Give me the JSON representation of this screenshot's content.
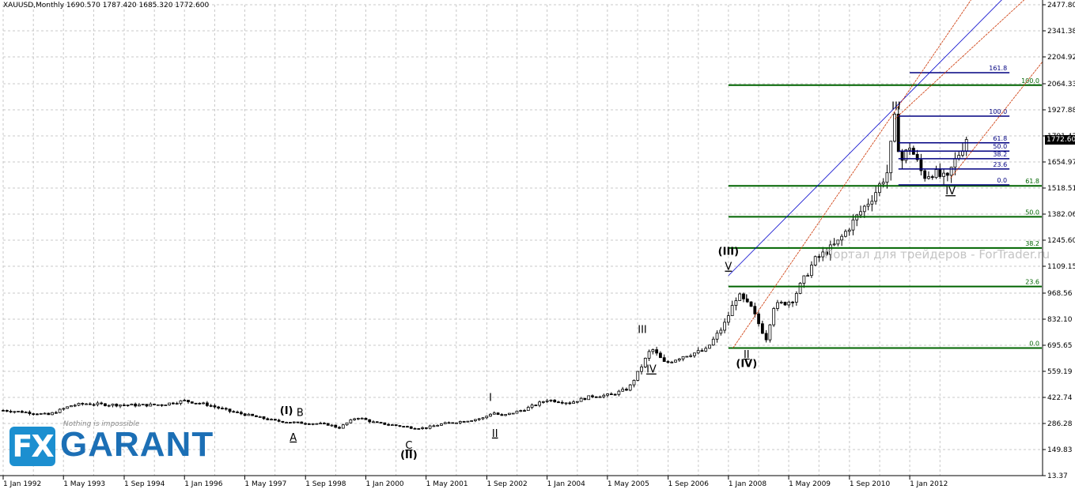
{
  "header": {
    "title": "XAUUSD,Monthly  1690.570 1787.420 1685.320 1772.600"
  },
  "watermark": "Портал для трейдеров - ForTrader.ru",
  "logo": {
    "fx": "FX",
    "name": "GARANT",
    "slogan": "Nothing is impossible"
  },
  "current_price": "1772.60",
  "chart_data": {
    "type": "candlestick",
    "symbol": "XAUUSD",
    "timeframe": "Monthly",
    "ohlc_last": {
      "open": 1690.57,
      "high": 1787.42,
      "low": 1685.32,
      "close": 1772.6
    },
    "y_ticks": [
      "2477.80",
      "2341.38",
      "2204.92",
      "2064.33",
      "1927.88",
      "1791.42",
      "1654.97",
      "1518.51",
      "1382.06",
      "1245.60",
      "1109.15",
      "968.56",
      "832.10",
      "695.65",
      "559.19",
      "422.74",
      "286.28",
      "149.83",
      "13.37"
    ],
    "y_tick_values": [
      2477.8,
      2341.38,
      2204.92,
      2064.33,
      1927.88,
      1791.42,
      1654.97,
      1518.51,
      1382.06,
      1245.6,
      1109.15,
      968.56,
      832.1,
      695.65,
      559.19,
      422.74,
      286.28,
      149.83,
      13.37
    ],
    "ylim": [
      13.37,
      2477.8
    ],
    "x_ticks": [
      "1 Jan 1992",
      "1 May 1993",
      "1 Sep 1994",
      "1 Jan 1996",
      "1 May 1997",
      "1 Sep 1998",
      "1 Jan 2000",
      "1 May 2001",
      "1 Sep 2002",
      "1 Jan 2004",
      "1 May 2005",
      "1 Sep 2006",
      "1 Jan 2008",
      "1 May 2009",
      "1 Sep 2010",
      "1 Jan 2012"
    ],
    "x_tick_years": [
      1992.0,
      1993.33,
      1994.67,
      1996.0,
      1997.33,
      1998.67,
      2000.0,
      2001.33,
      2002.67,
      2004.0,
      2005.33,
      2006.67,
      2008.0,
      2009.33,
      2010.67,
      2012.0
    ],
    "xlim": [
      1992.0,
      2014.93
    ],
    "price_path": [
      [
        1992.0,
        355
      ],
      [
        1992.5,
        345
      ],
      [
        1993.0,
        332
      ],
      [
        1993.5,
        380
      ],
      [
        1993.8,
        390
      ],
      [
        1994.3,
        385
      ],
      [
        1995.0,
        382
      ],
      [
        1995.5,
        385
      ],
      [
        1996.0,
        405
      ],
      [
        1996.5,
        385
      ],
      [
        1997.0,
        350
      ],
      [
        1997.5,
        325
      ],
      [
        1998.0,
        300
      ],
      [
        1998.5,
        290
      ],
      [
        1998.9,
        286
      ],
      [
        1999.2,
        280
      ],
      [
        1999.4,
        262
      ],
      [
        1999.8,
        320
      ],
      [
        2000.2,
        290
      ],
      [
        2000.6,
        278
      ],
      [
        2001.0,
        265
      ],
      [
        2001.3,
        262
      ],
      [
        2001.7,
        285
      ],
      [
        2002.2,
        300
      ],
      [
        2002.6,
        315
      ],
      [
        2002.8,
        345
      ],
      [
        2003.0,
        325
      ],
      [
        2003.5,
        360
      ],
      [
        2004.0,
        410
      ],
      [
        2004.5,
        395
      ],
      [
        2005.0,
        430
      ],
      [
        2005.4,
        435
      ],
      [
        2005.8,
        470
      ],
      [
        2006.0,
        550
      ],
      [
        2006.3,
        680
      ],
      [
        2006.6,
        600
      ],
      [
        2007.0,
        640
      ],
      [
        2007.5,
        670
      ],
      [
        2007.9,
        800
      ],
      [
        2008.2,
        960
      ],
      [
        2008.5,
        890
      ],
      [
        2008.83,
        730
      ],
      [
        2009.0,
        900
      ],
      [
        2009.4,
        930
      ],
      [
        2009.9,
        1140
      ],
      [
        2010.4,
        1230
      ],
      [
        2010.9,
        1390
      ],
      [
        2011.2,
        1480
      ],
      [
        2011.5,
        1600
      ],
      [
        2011.67,
        1880
      ],
      [
        2011.8,
        1650
      ],
      [
        2012.0,
        1740
      ],
      [
        2012.3,
        1580
      ],
      [
        2012.5,
        1600
      ],
      [
        2012.83,
        1560
      ],
      [
        2012.95,
        1640
      ],
      [
        2013.25,
        1772.6
      ]
    ],
    "series": [
      {
        "name": "Fibonacci levels (long-term)",
        "color": "#006400",
        "levels": [
          {
            "label": "0.0",
            "value": 681
          },
          {
            "label": "23.6",
            "value": 1003
          },
          {
            "label": "38.2",
            "value": 1205
          },
          {
            "label": "50.0",
            "value": 1368
          },
          {
            "label": "61.8",
            "value": 1530
          },
          {
            "label": "100.0",
            "value": 2057
          }
        ]
      },
      {
        "name": "Fibonacci levels (short-term)",
        "color": "#000080",
        "levels": [
          {
            "label": "0.0",
            "value": 1535
          },
          {
            "label": "23.6",
            "value": 1618
          },
          {
            "label": "38.2",
            "value": 1672
          },
          {
            "label": "50.0",
            "value": 1712
          },
          {
            "label": "61.8",
            "value": 1755
          },
          {
            "label": "100.0",
            "value": 1895
          },
          {
            "label": "161.8",
            "value": 2122
          }
        ]
      }
    ],
    "trendlines": [
      {
        "color": "#0000cc",
        "from": [
          2008.0,
          1060
        ],
        "to": [
          2014.1,
          2520
        ]
      },
      {
        "color": "#cc3300",
        "from": [
          2008.1,
          681
        ],
        "to": [
          2013.4,
          2520
        ]
      },
      {
        "color": "#cc3300",
        "from": [
          2011.67,
          1880
        ],
        "to": [
          2014.6,
          2520
        ]
      },
      {
        "color": "#cc3300",
        "from": [
          2012.9,
          1570
        ],
        "to": [
          2014.93,
          2180
        ]
      }
    ],
    "annotations": [
      {
        "text": "(I)",
        "x": 1998.25,
        "y": 335,
        "bold": true,
        "underline": false
      },
      {
        "text": "B",
        "x": 1998.55,
        "y": 325,
        "bold": false,
        "underline": false
      },
      {
        "text": "A",
        "x": 1998.4,
        "y": 196,
        "bold": false,
        "underline": true
      },
      {
        "text": "C",
        "x": 2000.95,
        "y": 154,
        "bold": false,
        "underline": true
      },
      {
        "text": "(II)",
        "x": 2000.95,
        "y": 104,
        "bold": true,
        "underline": false
      },
      {
        "text": "I",
        "x": 2002.75,
        "y": 405,
        "bold": false,
        "underline": false
      },
      {
        "text": "II",
        "x": 2002.85,
        "y": 217,
        "bold": false,
        "underline": true
      },
      {
        "text": "III",
        "x": 2006.1,
        "y": 760,
        "bold": false,
        "underline": false
      },
      {
        "text": "IV",
        "x": 2006.3,
        "y": 552,
        "bold": false,
        "underline": true
      },
      {
        "text": "(III)",
        "x": 2008.0,
        "y": 1170,
        "bold": true,
        "underline": false
      },
      {
        "text": "V",
        "x": 2008.0,
        "y": 1090,
        "bold": false,
        "underline": true
      },
      {
        "text": "I",
        "x": 2008.4,
        "y": 920,
        "bold": false,
        "underline": false
      },
      {
        "text": "II",
        "x": 2008.4,
        "y": 630,
        "bold": false,
        "underline": true
      },
      {
        "text": "(IV)",
        "x": 2008.4,
        "y": 582,
        "bold": true,
        "underline": false
      },
      {
        "text": "III",
        "x": 2011.7,
        "y": 1930,
        "bold": false,
        "underline": false
      },
      {
        "text": "IV",
        "x": 2012.9,
        "y": 1485,
        "bold": false,
        "underline": true
      }
    ],
    "grid": true
  }
}
